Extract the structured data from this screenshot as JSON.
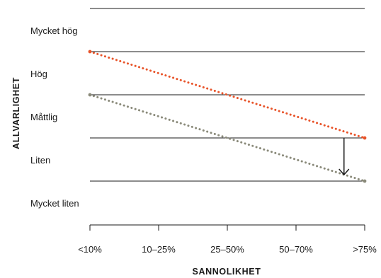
{
  "chart_data": {
    "type": "line",
    "xlabel": "SANNOLIKHET",
    "ylabel": "ALLVARLIGHET",
    "categories": [
      "<10%",
      "10–25%",
      "25–50%",
      "50–70%",
      ">75%"
    ],
    "severity_levels": [
      "Mycket hög",
      "Hög",
      "Måttlig",
      "Liten",
      "Mycket liten"
    ],
    "series": [
      {
        "color": "#e8542a",
        "x": [
          0,
          4
        ],
        "y": [
          4,
          2
        ]
      },
      {
        "color": "#8a8a7a",
        "x": [
          0,
          4
        ],
        "y": [
          3,
          1
        ]
      }
    ],
    "annotation": {
      "type": "arrow-down",
      "x": 3.75,
      "from_y": 2,
      "to_y": 1
    },
    "grid": true
  }
}
